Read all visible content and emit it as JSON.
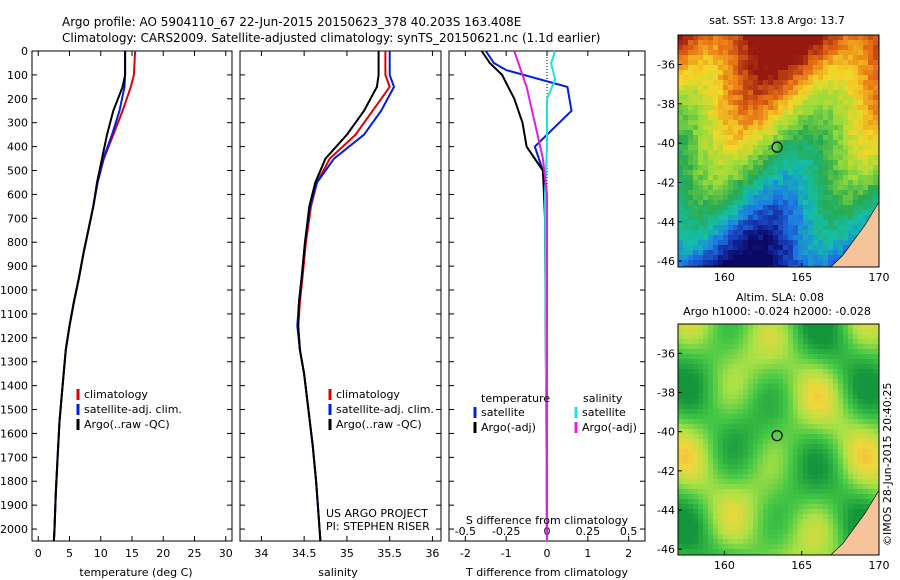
{
  "header": {
    "title_line1": "Argo profile: AO 5904110_67 22-Jun-2015 20150623_378 40.203S 163.408E",
    "title_line2": "Climatology: CARS2009. Satellite-adjusted climatology: synTS_20150621.nc (1.1d earlier)"
  },
  "colors": {
    "climatology": "#e00000",
    "satellite": "#0020e0",
    "argo": "#000000",
    "sat_salinity": "#20e0e0",
    "argo_salinity": "#e020e0",
    "land": "#f5c49b"
  },
  "chart_data": [
    {
      "type": "line",
      "panel": "temperature",
      "xlabel": "temperature (deg C)",
      "ylabel": "",
      "xlim": [
        -1,
        31
      ],
      "ylim": [
        2050,
        0
      ],
      "xticks": [
        0,
        5,
        10,
        15,
        20,
        25,
        30
      ],
      "yticks": [
        0,
        100,
        200,
        300,
        400,
        500,
        600,
        700,
        800,
        900,
        1000,
        1100,
        1200,
        1300,
        1400,
        1500,
        1600,
        1700,
        1800,
        1900,
        2000
      ],
      "legend": [
        "climatology",
        "satellite-adj. clim.",
        "Argo(..raw -QC)"
      ],
      "series": [
        {
          "name": "climatology",
          "color": "#e00000",
          "x": [
            15.5,
            15.3,
            14.8,
            13.5,
            12.0,
            10.5,
            9.5,
            8.8,
            8.0,
            7.2,
            6.5,
            5.7,
            5.0,
            4.4,
            3.9,
            3.4,
            3.1,
            2.8,
            2.6,
            2.5
          ],
          "y": [
            0,
            100,
            150,
            250,
            350,
            450,
            550,
            650,
            750,
            850,
            950,
            1050,
            1150,
            1250,
            1400,
            1550,
            1700,
            1850,
            2000,
            2050
          ]
        },
        {
          "name": "satellite-adj. clim.",
          "color": "#0020e0",
          "x": [
            13.9,
            13.9,
            13.8,
            13.0,
            11.8,
            10.4,
            9.5,
            8.8,
            8.0,
            7.2,
            6.5,
            5.7,
            5.0,
            4.4,
            3.9,
            3.4,
            3.1,
            2.8,
            2.6,
            2.5
          ],
          "y": [
            0,
            100,
            150,
            250,
            350,
            450,
            550,
            650,
            750,
            850,
            950,
            1050,
            1150,
            1250,
            1400,
            1550,
            1700,
            1850,
            2000,
            2050
          ]
        },
        {
          "name": "Argo(..raw -QC)",
          "color": "#000000",
          "x": [
            13.9,
            13.9,
            13.5,
            12.0,
            11.0,
            10.2,
            9.4,
            8.8,
            8.0,
            7.2,
            6.5,
            5.7,
            5.0,
            4.4,
            3.9,
            3.4,
            3.1,
            2.8,
            2.6,
            2.5
          ],
          "y": [
            0,
            100,
            150,
            250,
            350,
            450,
            550,
            650,
            750,
            850,
            950,
            1050,
            1150,
            1250,
            1400,
            1550,
            1700,
            1850,
            2000,
            2050
          ]
        }
      ]
    },
    {
      "type": "line",
      "panel": "salinity",
      "xlabel": "salinity",
      "xlim": [
        33.75,
        36.1
      ],
      "ylim": [
        2050,
        0
      ],
      "xticks": [
        34,
        34.5,
        35,
        35.5,
        36
      ],
      "xticklabels": [
        "34",
        "34.5",
        "35",
        "35.5",
        "36"
      ],
      "legend": [
        "climatology",
        "satellite-adj. clim.",
        "Argo(..raw -QC)"
      ],
      "annotation": [
        "US ARGO PROJECT",
        "PI: STEPHEN RISER"
      ],
      "series": [
        {
          "name": "climatology",
          "color": "#e00000",
          "x": [
            35.45,
            35.45,
            35.5,
            35.3,
            35.1,
            34.8,
            34.65,
            34.58,
            34.52,
            34.48,
            34.45,
            34.43,
            34.45,
            34.5,
            34.55,
            34.6,
            34.64,
            34.67,
            34.69
          ],
          "y": [
            0,
            100,
            150,
            250,
            350,
            450,
            550,
            650,
            800,
            950,
            1050,
            1150,
            1250,
            1350,
            1500,
            1650,
            1800,
            1950,
            2050
          ]
        },
        {
          "name": "satellite-adj. clim.",
          "color": "#0020e0",
          "x": [
            35.5,
            35.5,
            35.55,
            35.4,
            35.2,
            34.85,
            34.65,
            34.57,
            34.51,
            34.47,
            34.44,
            34.42,
            34.45,
            34.5,
            34.55,
            34.6,
            34.64,
            34.67,
            34.69
          ],
          "y": [
            0,
            100,
            150,
            250,
            350,
            450,
            550,
            650,
            800,
            950,
            1050,
            1150,
            1250,
            1350,
            1500,
            1650,
            1800,
            1950,
            2050
          ]
        },
        {
          "name": "Argo(..raw -QC)",
          "color": "#000000",
          "x": [
            35.37,
            35.37,
            35.35,
            35.2,
            35.0,
            34.75,
            34.63,
            34.56,
            34.51,
            34.47,
            34.44,
            34.43,
            34.45,
            34.5,
            34.55,
            34.6,
            34.64,
            34.67,
            34.69
          ],
          "y": [
            0,
            100,
            150,
            250,
            350,
            450,
            550,
            650,
            800,
            950,
            1050,
            1150,
            1250,
            1350,
            1500,
            1650,
            1800,
            1950,
            2050
          ]
        }
      ]
    },
    {
      "type": "line",
      "panel": "difference",
      "xlabel": "T difference from climatology",
      "top_axis_label": "S difference from climatology",
      "xlim": [
        -2.4,
        2.4
      ],
      "ylim": [
        2050,
        0
      ],
      "xticks": [
        -2,
        -1,
        0,
        1,
        2
      ],
      "top_xticklabels": [
        "-0.5",
        "-0.25",
        "0",
        "0.25",
        "0.5"
      ],
      "legend_temperature_header": "temperature",
      "legend_salinity_header": "salinity",
      "legend": [
        "satellite",
        "Argo(-adj)",
        "satellite",
        "Argo(-adj)"
      ],
      "series": [
        {
          "name": "satellite",
          "group": "temperature",
          "color": "#0020e0",
          "x": [
            -1.5,
            -1.3,
            -1.0,
            0.5,
            0.6,
            -0.3,
            -0.1,
            0.0,
            0.0
          ],
          "y": [
            0,
            50,
            80,
            150,
            250,
            400,
            500,
            700,
            2050
          ]
        },
        {
          "name": "Argo(-adj)",
          "group": "temperature",
          "color": "#000000",
          "x": [
            -1.6,
            -1.4,
            -1.1,
            -0.8,
            -0.6,
            -0.5,
            -0.1,
            -0.05,
            0.0
          ],
          "y": [
            0,
            50,
            100,
            200,
            300,
            400,
            500,
            700,
            2050
          ]
        },
        {
          "name": "satellite",
          "group": "salinity",
          "color": "#20e0e0",
          "x": [
            0.2,
            0.1,
            0.2,
            0.0,
            0.0,
            -0.05,
            0.0
          ],
          "y": [
            0,
            50,
            120,
            200,
            400,
            600,
            2050
          ]
        },
        {
          "name": "Argo(-adj)",
          "group": "salinity",
          "color": "#e020e0",
          "x": [
            -0.8,
            -0.7,
            -0.5,
            -0.3,
            -0.1,
            0.0,
            0.0
          ],
          "y": [
            0,
            50,
            150,
            300,
            450,
            600,
            2050
          ]
        }
      ]
    },
    {
      "type": "heatmap",
      "panel": "sst_map",
      "title": "sat. SST: 13.8 Argo: 13.7",
      "xlim": [
        157,
        170
      ],
      "ylim": [
        -46.3,
        -34.5
      ],
      "xticks": [
        160,
        165,
        170
      ],
      "yticks": [
        -36,
        -38,
        -40,
        -42,
        -44,
        -46
      ],
      "marker": {
        "lon": 163.408,
        "lat": -40.203
      }
    },
    {
      "type": "heatmap",
      "panel": "sla_map",
      "title_line1": "Altim. SLA: 0.08",
      "title_line2": "Argo h1000: -0.024 h2000: -0.028",
      "xlim": [
        157,
        170
      ],
      "ylim": [
        -46.3,
        -34.5
      ],
      "xticks": [
        160,
        165,
        170
      ],
      "yticks": [
        -36,
        -38,
        -40,
        -42,
        -44,
        -46
      ],
      "marker": {
        "lon": 163.408,
        "lat": -40.203
      }
    }
  ],
  "footer": {
    "stamp": "©IMOS 28-Jun-2015 20:40:25"
  }
}
